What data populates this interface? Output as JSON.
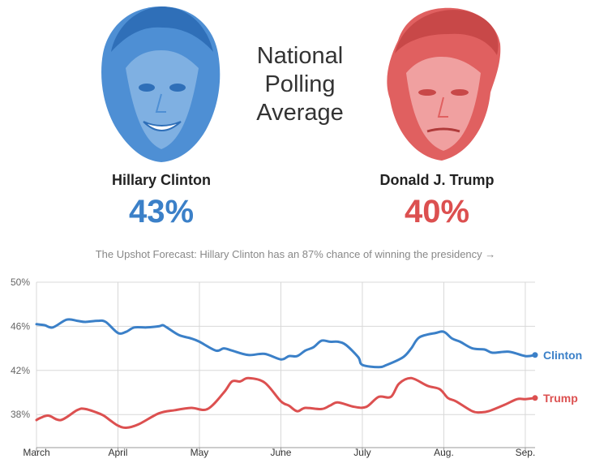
{
  "header": {
    "title_lines": [
      "National",
      "Polling",
      "Average"
    ]
  },
  "candidates": [
    {
      "name": "Hillary Clinton",
      "pct": "43%",
      "color": "#3b80c8",
      "face_icon": "clinton-face-icon"
    },
    {
      "name": "Donald J. Trump",
      "pct": "40%",
      "color": "#dc5050",
      "face_icon": "trump-face-icon"
    }
  ],
  "forecast_link": "The Upshot Forecast: Hillary Clinton has an 87% chance of winning the presidency →",
  "chart_data": {
    "type": "line",
    "grid": true,
    "ylim": [
      35,
      50
    ],
    "yticks": [
      50,
      46,
      42,
      38
    ],
    "ytick_labels": [
      "50%",
      "46%",
      "42%",
      "38%"
    ],
    "xticks": [
      "March",
      "April",
      "May",
      "June",
      "July",
      "Aug.",
      "Sep."
    ],
    "x_range_months": [
      0,
      6.12
    ],
    "series": [
      {
        "name": "Clinton",
        "color": "#3b80c8",
        "x": [
          0,
          0.1,
          0.2,
          0.37,
          0.5,
          0.6,
          0.75,
          0.85,
          1.0,
          1.1,
          1.2,
          1.35,
          1.5,
          1.55,
          1.6,
          1.75,
          1.9,
          2.0,
          2.2,
          2.3,
          2.4,
          2.6,
          2.8,
          3.0,
          3.1,
          3.2,
          3.3,
          3.4,
          3.5,
          3.6,
          3.7,
          3.8,
          3.95,
          4.0,
          4.2,
          4.3,
          4.5,
          4.6,
          4.7,
          4.9,
          5.0,
          5.1,
          5.2,
          5.35,
          5.5,
          5.6,
          5.8,
          6.0,
          6.12
        ],
        "values": [
          46.2,
          46.1,
          45.9,
          46.6,
          46.5,
          46.4,
          46.5,
          46.4,
          45.4,
          45.5,
          45.9,
          45.9,
          46.0,
          46.1,
          45.9,
          45.2,
          44.9,
          44.6,
          43.8,
          44.0,
          43.8,
          43.4,
          43.5,
          43.0,
          43.3,
          43.3,
          43.8,
          44.1,
          44.7,
          44.6,
          44.6,
          44.3,
          43.2,
          42.5,
          42.3,
          42.5,
          43.2,
          44.0,
          45.0,
          45.4,
          45.5,
          44.9,
          44.6,
          44.0,
          43.9,
          43.6,
          43.7,
          43.3,
          43.4
        ]
      },
      {
        "name": "Trump",
        "color": "#dc5050",
        "x": [
          0,
          0.05,
          0.15,
          0.3,
          0.5,
          0.6,
          0.8,
          0.9,
          1.0,
          1.1,
          1.25,
          1.5,
          1.7,
          1.9,
          2.1,
          2.3,
          2.4,
          2.5,
          2.6,
          2.8,
          3.0,
          3.1,
          3.2,
          3.3,
          3.5,
          3.6,
          3.7,
          3.9,
          4.05,
          4.2,
          4.35,
          4.45,
          4.6,
          4.8,
          4.95,
          5.05,
          5.15,
          5.35,
          5.45,
          5.55,
          5.75,
          5.9,
          6.0,
          6.12
        ],
        "values": [
          37.5,
          37.7,
          37.9,
          37.5,
          38.4,
          38.5,
          38.0,
          37.5,
          37.0,
          36.8,
          37.1,
          38.1,
          38.4,
          38.6,
          38.5,
          40.0,
          41.0,
          41.0,
          41.3,
          40.9,
          39.2,
          38.8,
          38.3,
          38.6,
          38.5,
          38.8,
          39.1,
          38.7,
          38.7,
          39.6,
          39.6,
          40.8,
          41.3,
          40.6,
          40.3,
          39.5,
          39.2,
          38.3,
          38.2,
          38.3,
          38.9,
          39.4,
          39.4,
          39.5
        ]
      }
    ]
  }
}
